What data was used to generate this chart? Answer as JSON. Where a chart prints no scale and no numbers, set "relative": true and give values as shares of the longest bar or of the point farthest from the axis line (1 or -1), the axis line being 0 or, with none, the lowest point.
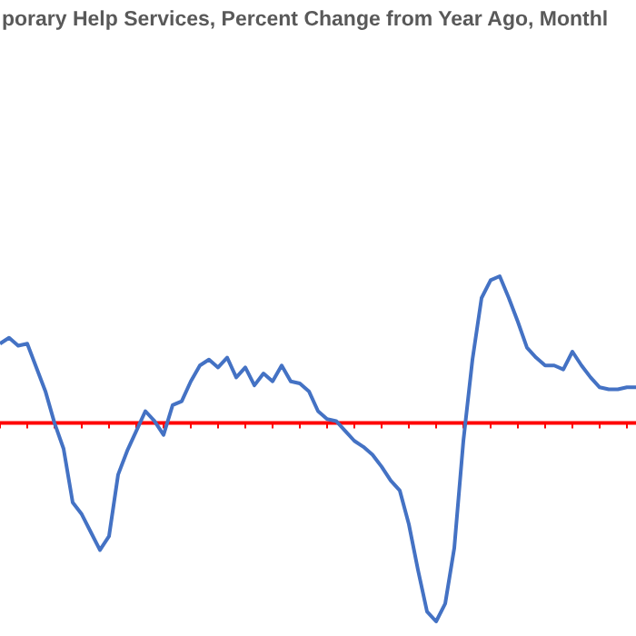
{
  "chart_data": {
    "type": "line",
    "title": "porary Help Services, Percent Change from Year Ago, Monthl",
    "relative": true,
    "categories": [
      null,
      null,
      null,
      null,
      null,
      null,
      null,
      null,
      null,
      null,
      null,
      null,
      null,
      null,
      null,
      null,
      null,
      null,
      null,
      null,
      null,
      null,
      null,
      null,
      null,
      null,
      null,
      null,
      null,
      null,
      null,
      null,
      null,
      null,
      null,
      null,
      null,
      null,
      null,
      null,
      null,
      null,
      null,
      null,
      null,
      null,
      null,
      null,
      null,
      null,
      null,
      null,
      null,
      null,
      null,
      null,
      null,
      null,
      null,
      null,
      null,
      null,
      null,
      null,
      null,
      null,
      null,
      null,
      null,
      null,
      null
    ],
    "series": [
      {
        "color": "#4472c4",
        "values": [
          0.4,
          0.43,
          0.39,
          0.4,
          0.28,
          0.16,
          0,
          -0.13,
          -0.4,
          -0.46,
          -0.55,
          -0.64,
          -0.57,
          -0.26,
          -0.14,
          -0.04,
          0.06,
          0.01,
          -0.06,
          0.09,
          0.11,
          0.21,
          0.29,
          0.32,
          0.28,
          0.33,
          0.23,
          0.28,
          0.19,
          0.25,
          0.21,
          0.29,
          0.21,
          0.2,
          0.16,
          0.06,
          0.02,
          0.01,
          -0.04,
          -0.09,
          -0.12,
          -0.16,
          -0.22,
          -0.29,
          -0.34,
          -0.51,
          -0.74,
          -0.95,
          -1,
          -0.91,
          -0.63,
          -0.09,
          0.32,
          0.63,
          0.72,
          0.74,
          0.63,
          0.51,
          0.38,
          0.33,
          0.29,
          0.29,
          0.27,
          0.36,
          0.29,
          0.23,
          0.18,
          0.17,
          0.17,
          0.18,
          0.18
        ]
      }
    ],
    "ref_lines": [
      {
        "axis": "y",
        "value": 0,
        "color": "#ff0000"
      }
    ],
    "line_style": "solid"
  }
}
